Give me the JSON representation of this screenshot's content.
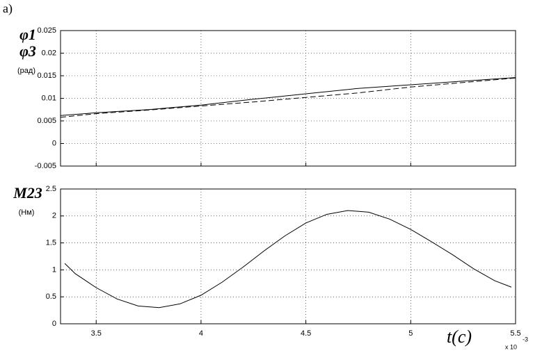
{
  "panel_label": "а)",
  "chart_data": [
    {
      "type": "line",
      "ylabel_lines": [
        "φ1",
        "φ3",
        "(рад)"
      ],
      "x": [
        3.33,
        3.5,
        3.75,
        4,
        4.25,
        4.5,
        4.75,
        5,
        5.25,
        5.5
      ],
      "series": [
        {
          "color": "#000000",
          "dash": "solid",
          "values": [
            0.0062,
            0.0068,
            0.0075,
            0.0085,
            0.0098,
            0.011,
            0.0122,
            0.013,
            0.0138,
            0.0146
          ]
        },
        {
          "color": "#000000",
          "dash": "dashed",
          "values": [
            0.0058,
            0.0066,
            0.0074,
            0.0083,
            0.0092,
            0.0102,
            0.0112,
            0.0125,
            0.0135,
            0.0145
          ]
        }
      ],
      "xlim": [
        3.33,
        5.5
      ],
      "xticks": [
        3.5,
        4,
        4.5,
        5,
        5.5
      ],
      "show_xtick_labels": false,
      "ylim": [
        -0.005,
        0.025
      ],
      "yticks": [
        -0.005,
        0,
        0.005,
        0.01,
        0.015,
        0.02,
        0.025
      ],
      "grid": true
    },
    {
      "type": "line",
      "ylabel_lines": [
        "M23",
        "(Нм)"
      ],
      "xlabel": "t(c)",
      "x_multiplier": "x 10",
      "x_exponent": "-3",
      "x": [
        3.35,
        3.4,
        3.5,
        3.6,
        3.7,
        3.8,
        3.9,
        4.0,
        4.1,
        4.2,
        4.3,
        4.4,
        4.5,
        4.6,
        4.7,
        4.8,
        4.9,
        5.0,
        5.1,
        5.2,
        5.3,
        5.4,
        5.48
      ],
      "series": [
        {
          "color": "#000000",
          "dash": "solid",
          "values": [
            1.12,
            0.93,
            0.67,
            0.46,
            0.33,
            0.3,
            0.37,
            0.53,
            0.77,
            1.05,
            1.35,
            1.63,
            1.87,
            2.03,
            2.1,
            2.07,
            1.94,
            1.75,
            1.52,
            1.28,
            1.02,
            0.8,
            0.68
          ]
        }
      ],
      "xlim": [
        3.33,
        5.5
      ],
      "xticks": [
        3.5,
        4,
        4.5,
        5,
        5.5
      ],
      "show_xtick_labels": true,
      "ylim": [
        0,
        2.5
      ],
      "yticks": [
        0,
        0.5,
        1,
        1.5,
        2,
        2.5
      ],
      "grid": true
    }
  ]
}
